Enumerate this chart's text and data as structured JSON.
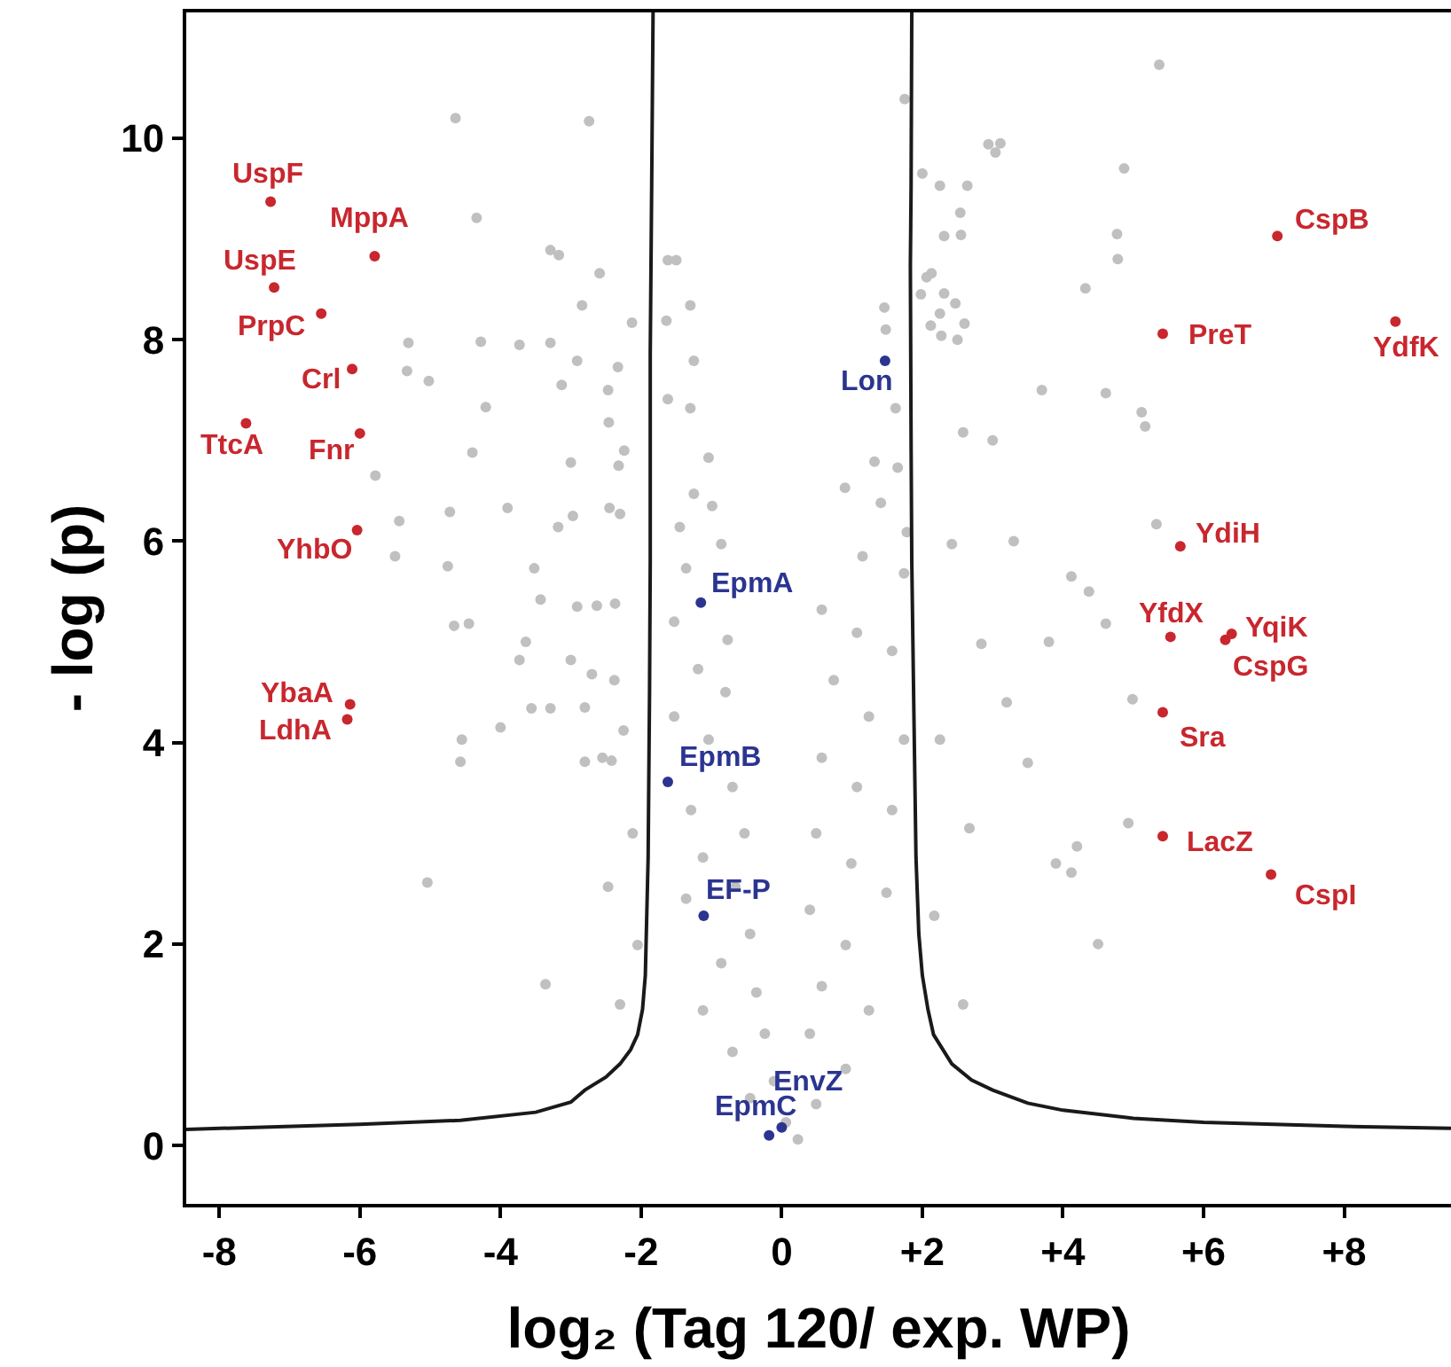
{
  "chart_data": {
    "type": "scatter",
    "xlabel": "log₂ (Tag 120/ exp. WP)",
    "ylabel": "- log (p)",
    "xlim": [
      -8.47,
      9.52
    ],
    "ylim": [
      -0.58,
      11.25
    ],
    "xticks": [
      -8,
      -6,
      -4,
      -2,
      0,
      {
        "value": 2,
        "label": "+2"
      },
      {
        "value": 4,
        "label": "+4"
      },
      {
        "value": 6,
        "label": "+6"
      },
      {
        "value": 8,
        "label": "+8"
      }
    ],
    "yticks": [
      0,
      2,
      4,
      6,
      8,
      10
    ],
    "marker": "circle",
    "series": [
      {
        "color": "#c0c0c0",
        "x": [
          -4.64,
          -2.74,
          -4.34,
          -3.29,
          -3.17,
          -2.59,
          -2.84,
          -2.13,
          -5.31,
          -4.28,
          -3.73,
          -3.29,
          -5.33,
          -5.02,
          -2.91,
          -2.33,
          -3.13,
          -2.47,
          -4.21,
          -2.46,
          -4.4,
          -5.78,
          -3.0,
          -2.32,
          -2.24,
          -5.44,
          -4.72,
          -3.9,
          -2.97,
          -2.45,
          -3.18,
          -5.5,
          -4.75,
          -3.52,
          -3.43,
          -2.91,
          -2.37,
          -4.66,
          -4.45,
          -3.64,
          -3.73,
          -3.0,
          -2.7,
          -3.56,
          -3.29,
          -2.8,
          -4.0,
          -4.55,
          -4.57,
          -2.8,
          -2.42,
          -2.25,
          -5.04,
          -3.36,
          -1.62,
          -1.5,
          -1.3,
          -1.64,
          1.46,
          1.48,
          5.37,
          1.75,
          2.94,
          3.04,
          3.11,
          4.87,
          2.0,
          2.25,
          2.64,
          2.54,
          2.55,
          2.31,
          4.77,
          4.78,
          4.32,
          2.06,
          2.13,
          1.98,
          2.31,
          2.47,
          2.6,
          2.12,
          2.27,
          2.5,
          4.61,
          5.12,
          5.17,
          5.33,
          4.12,
          4.37,
          4.61,
          4.99,
          4.93,
          4.2,
          4.12,
          4.5,
          3.9,
          3.5,
          3.2,
          3.8,
          3.3,
          3.0,
          3.7,
          -1.25,
          -1.62,
          -1.3,
          -1.04,
          -1.25,
          -0.99,
          -1.45,
          -0.86,
          -1.36,
          -1.53,
          -0.77,
          -1.19,
          -0.8,
          -1.53,
          -1.04,
          -0.7,
          -1.29,
          -0.53,
          -1.12,
          -0.66,
          -1.36,
          -0.45,
          -0.86,
          -0.36,
          -1.12,
          -0.24,
          -0.7,
          -0.11,
          -0.45,
          0.06,
          0.23,
          1.62,
          1.32,
          1.65,
          0.9,
          1.41,
          1.78,
          1.15,
          1.74,
          0.57,
          1.07,
          1.57,
          0.74,
          1.24,
          1.74,
          0.57,
          1.07,
          1.57,
          0.49,
          0.99,
          1.49,
          0.4,
          0.91,
          0.57,
          1.24,
          0.4,
          0.91,
          0.49,
          -2.3,
          -2.63,
          -2.38,
          -2.55,
          -2.12,
          -2.47,
          -2.05,
          -2.3,
          2.25,
          2.58,
          2.42,
          2.84,
          2.25,
          2.67,
          2.17,
          2.58
        ],
        "values": [
          10.2,
          10.17,
          9.21,
          8.89,
          8.84,
          8.66,
          8.34,
          8.17,
          7.97,
          7.98,
          7.95,
          7.97,
          7.69,
          7.59,
          7.79,
          7.73,
          7.55,
          7.5,
          7.33,
          7.18,
          6.88,
          6.65,
          6.78,
          6.75,
          6.9,
          6.2,
          6.29,
          6.33,
          6.25,
          6.33,
          6.14,
          5.85,
          5.75,
          5.73,
          5.42,
          5.35,
          5.38,
          5.16,
          5.18,
          5.0,
          4.82,
          4.82,
          4.68,
          4.34,
          4.34,
          4.35,
          4.15,
          4.03,
          3.81,
          3.81,
          3.82,
          4.12,
          2.61,
          1.6,
          8.79,
          8.79,
          8.34,
          8.19,
          8.32,
          8.1,
          10.73,
          10.39,
          9.94,
          9.86,
          9.95,
          9.7,
          9.65,
          9.53,
          9.53,
          9.26,
          9.04,
          9.03,
          9.05,
          8.8,
          8.51,
          8.62,
          8.66,
          8.45,
          8.46,
          8.36,
          8.16,
          8.14,
          8.04,
          8.0,
          7.47,
          7.28,
          7.14,
          6.17,
          5.65,
          5.5,
          5.18,
          4.43,
          3.2,
          2.97,
          2.71,
          2.0,
          2.8,
          3.8,
          4.4,
          5.0,
          6.0,
          7.0,
          7.5,
          7.79,
          7.41,
          7.32,
          6.83,
          6.47,
          6.35,
          6.14,
          5.97,
          5.73,
          5.2,
          5.02,
          4.73,
          4.5,
          4.26,
          4.03,
          3.56,
          3.33,
          3.1,
          2.86,
          2.57,
          2.45,
          2.1,
          1.81,
          1.52,
          1.34,
          1.11,
          0.93,
          0.64,
          0.47,
          0.23,
          0.06,
          7.32,
          6.79,
          6.73,
          6.53,
          6.38,
          6.09,
          5.85,
          5.68,
          5.32,
          5.09,
          4.91,
          4.62,
          4.26,
          4.03,
          3.85,
          3.56,
          3.33,
          3.1,
          2.8,
          2.51,
          2.34,
          1.99,
          1.58,
          1.34,
          1.11,
          0.76,
          0.41,
          6.27,
          5.36,
          4.62,
          3.85,
          3.1,
          2.57,
          1.99,
          1.4,
          8.26,
          7.08,
          5.97,
          4.98,
          4.03,
          3.15,
          2.28,
          1.4
        ]
      },
      {
        "type": "line",
        "marker": "none",
        "color": "#1a1a1a",
        "x": [
          -8.47,
          -6.0,
          -4.57,
          -3.5,
          -3.0,
          -2.8,
          -2.5,
          -2.3,
          -2.15,
          -2.05,
          -1.98,
          -1.94,
          -1.9,
          -1.88,
          -1.87,
          -1.87,
          -1.85,
          -1.83
        ],
        "values": [
          0.16,
          0.21,
          0.25,
          0.33,
          0.43,
          0.55,
          0.68,
          0.81,
          0.95,
          1.1,
          1.35,
          1.69,
          2.86,
          4.5,
          5.8,
          7.87,
          9.5,
          11.25
        ]
      },
      {
        "type": "line",
        "marker": "none",
        "color": "#1a1a1a",
        "x": [
          1.85,
          1.84,
          1.83,
          1.84,
          1.85,
          1.88,
          1.91,
          1.95,
          2.0,
          2.08,
          2.16,
          2.42,
          2.7,
          3.0,
          3.5,
          4.0,
          5.0,
          6.0,
          7.0,
          8.0,
          9.52
        ],
        "values": [
          11.25,
          9.5,
          8.73,
          7.0,
          5.8,
          4.3,
          2.86,
          2.1,
          1.69,
          1.35,
          1.1,
          0.81,
          0.65,
          0.55,
          0.42,
          0.35,
          0.27,
          0.23,
          0.21,
          0.19,
          0.17
        ]
      },
      {
        "color": "#c8272e",
        "x": [
          -7.27,
          -5.79,
          -7.22,
          -6.55,
          -6.11,
          -7.62,
          -6.0,
          -6.04,
          -6.14,
          -6.18,
          7.05,
          5.42,
          8.73,
          5.67,
          5.53,
          6.4,
          6.31,
          5.42,
          5.42,
          6.96
        ],
        "values": [
          9.37,
          8.83,
          8.52,
          8.26,
          7.71,
          7.17,
          7.07,
          6.11,
          4.38,
          4.23,
          9.03,
          8.06,
          8.18,
          5.95,
          5.05,
          5.08,
          5.02,
          4.3,
          3.07,
          2.69
        ]
      },
      {
        "color": "#2b3590",
        "x": [
          1.47,
          -1.15,
          -1.62,
          -1.11,
          0.0,
          -0.18
        ],
        "values": [
          7.79,
          5.39,
          3.61,
          2.28,
          0.18,
          0.1
        ]
      }
    ],
    "annotations": [
      {
        "text": "UspF",
        "x": -7.27,
        "y": 9.37
      },
      {
        "text": "MppA",
        "x": -5.79,
        "y": 8.83
      },
      {
        "text": "UspE",
        "x": -7.22,
        "y": 8.52
      },
      {
        "text": "PrpC",
        "x": -6.55,
        "y": 8.26
      },
      {
        "text": "Crl",
        "x": -6.11,
        "y": 7.71
      },
      {
        "text": "TtcA",
        "x": -7.62,
        "y": 7.17
      },
      {
        "text": "Fnr",
        "x": -6.0,
        "y": 7.07
      },
      {
        "text": "YhbO",
        "x": -6.04,
        "y": 6.11
      },
      {
        "text": "YbaA",
        "x": -6.14,
        "y": 4.38
      },
      {
        "text": "LdhA",
        "x": -6.18,
        "y": 4.23
      },
      {
        "text": "CspB",
        "x": 7.05,
        "y": 9.03
      },
      {
        "text": "PreT",
        "x": 5.42,
        "y": 8.06
      },
      {
        "text": "YdfK",
        "x": 8.73,
        "y": 8.18
      },
      {
        "text": "YdiH",
        "x": 5.67,
        "y": 5.95
      },
      {
        "text": "YfdX",
        "x": 5.53,
        "y": 5.05
      },
      {
        "text": "YqiK",
        "x": 6.4,
        "y": 5.08
      },
      {
        "text": "CspG",
        "x": 6.31,
        "y": 5.02
      },
      {
        "text": "Sra",
        "x": 5.42,
        "y": 4.3
      },
      {
        "text": "LacZ",
        "x": 5.42,
        "y": 3.07
      },
      {
        "text": "CspI",
        "x": 6.96,
        "y": 2.69
      },
      {
        "text": "Lon",
        "x": 1.47,
        "y": 7.79
      },
      {
        "text": "EpmA",
        "x": -1.15,
        "y": 5.39
      },
      {
        "text": "EpmB",
        "x": -1.62,
        "y": 3.61
      },
      {
        "text": "EF-P",
        "x": -1.11,
        "y": 2.28
      },
      {
        "text": "EnvZ",
        "x": 0.0,
        "y": 0.18
      },
      {
        "text": "EpmC",
        "x": -0.18,
        "y": 0.1
      }
    ]
  }
}
